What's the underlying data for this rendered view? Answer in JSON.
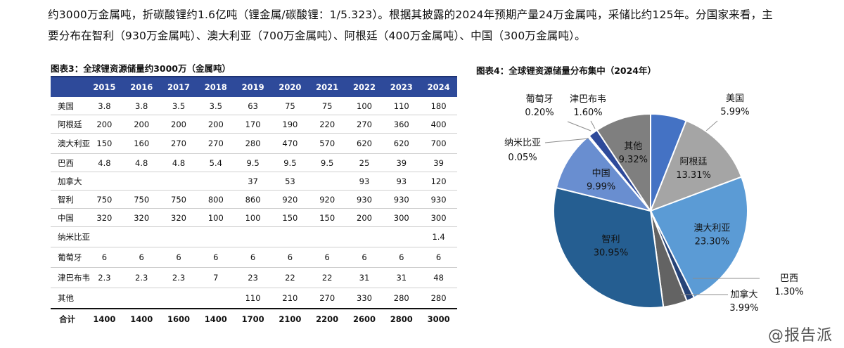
{
  "intro": {
    "line1": "约3000万金属吨，折碳酸锂约1.6亿吨（锂金属/碳酸锂：1/5.323）。根据其披露的2024年预期产量24万金属吨，采储比约125年。分国家来看，主",
    "line2": "要分布在智利（930万金属吨）、澳大利亚（700万金属吨）、阿根廷（400万金属吨）、中国（300万金属吨）。"
  },
  "table": {
    "title": "图表3：全球锂资源储量约3000万（金属吨）",
    "header_blank": "",
    "years": [
      "2015",
      "2016",
      "2017",
      "2018",
      "2019",
      "2020",
      "2021",
      "2022",
      "2023",
      "2024"
    ],
    "rows": [
      {
        "name": "美国",
        "values": [
          "3.8",
          "3.8",
          "3.5",
          "3.5",
          "63",
          "75",
          "75",
          "100",
          "110",
          "180"
        ]
      },
      {
        "name": "阿根廷",
        "values": [
          "200",
          "200",
          "200",
          "200",
          "170",
          "190",
          "220",
          "270",
          "360",
          "400"
        ]
      },
      {
        "name": "澳大利亚",
        "values": [
          "150",
          "160",
          "270",
          "270",
          "280",
          "470",
          "570",
          "620",
          "620",
          "700"
        ]
      },
      {
        "name": "巴西",
        "values": [
          "4.8",
          "4.8",
          "4.8",
          "5.4",
          "9.5",
          "9.5",
          "9.5",
          "25",
          "39",
          "39"
        ]
      },
      {
        "name": "加拿大",
        "values": [
          "",
          "",
          "",
          "",
          "37",
          "53",
          "",
          "93",
          "93",
          "120"
        ]
      },
      {
        "name": "智利",
        "values": [
          "750",
          "750",
          "750",
          "800",
          "860",
          "920",
          "920",
          "930",
          "930",
          "930"
        ]
      },
      {
        "name": "中国",
        "values": [
          "320",
          "320",
          "320",
          "100",
          "100",
          "150",
          "150",
          "200",
          "300",
          "300"
        ]
      },
      {
        "name": "纳米比亚",
        "values": [
          "",
          "",
          "",
          "",
          "",
          "",
          "",
          "",
          "",
          "1.4"
        ]
      },
      {
        "name": "葡萄牙",
        "values": [
          "6",
          "6",
          "6",
          "6",
          "6",
          "6",
          "6",
          "6",
          "6",
          "6"
        ]
      },
      {
        "name": "津巴布韦",
        "values": [
          "2.3",
          "2.3",
          "2.3",
          "7",
          "23",
          "22",
          "22",
          "31",
          "31",
          "48"
        ]
      },
      {
        "name": "其他",
        "values": [
          "",
          "",
          "",
          "",
          "110",
          "210",
          "270",
          "330",
          "280",
          "280"
        ]
      }
    ],
    "total": {
      "name": "合计",
      "values": [
        "1400",
        "1400",
        "1600",
        "1400",
        "1700",
        "2100",
        "2200",
        "2600",
        "2800",
        "3000"
      ]
    }
  },
  "chart_data": {
    "type": "pie",
    "title": "图表4：全球锂资源储量分布集中（2024年）",
    "slices": [
      {
        "label": "美国",
        "pct_label": "5.99%",
        "value": 5.99,
        "color": "#4472c4"
      },
      {
        "label": "阿根廷",
        "pct_label": "13.31%",
        "value": 13.31,
        "color": "#a5a5a5"
      },
      {
        "label": "澳大利亚",
        "pct_label": "23.30%",
        "value": 23.3,
        "color": "#5b9bd5"
      },
      {
        "label": "巴西",
        "pct_label": "1.30%",
        "value": 1.3,
        "color": "#264478"
      },
      {
        "label": "加拿大",
        "pct_label": "3.99%",
        "value": 3.99,
        "color": "#636363"
      },
      {
        "label": "智利",
        "pct_label": "30.95%",
        "value": 30.95,
        "color": "#255e91"
      },
      {
        "label": "中国",
        "pct_label": "9.99%",
        "value": 9.99,
        "color": "#698ed0"
      },
      {
        "label": "纳米比亚",
        "pct_label": "0.05%",
        "value": 0.05,
        "color": "#c0c0c0"
      },
      {
        "label": "葡萄牙",
        "pct_label": "0.20%",
        "value": 0.2,
        "color": "#9e9e9e"
      },
      {
        "label": "津巴布韦",
        "pct_label": "1.60%",
        "value": 1.6,
        "color": "#2e4a9a"
      },
      {
        "label": "其他",
        "pct_label": "9.32%",
        "value": 9.32,
        "color": "#7f7f7f"
      }
    ]
  },
  "watermark": "@报告派"
}
